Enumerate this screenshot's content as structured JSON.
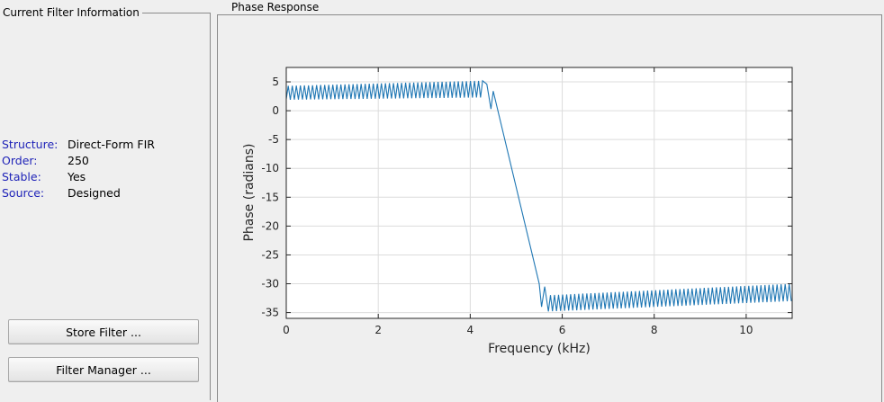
{
  "left_panel": {
    "title": "Current Filter Information",
    "info": [
      {
        "label": "Structure:",
        "value": "Direct-Form FIR"
      },
      {
        "label": "Order:",
        "value": "250"
      },
      {
        "label": "Stable:",
        "value": "Yes"
      },
      {
        "label": "Source:",
        "value": "Designed"
      }
    ],
    "buttons": {
      "store_filter": "Store Filter ...",
      "filter_manager": "Filter Manager ..."
    }
  },
  "right_panel": {
    "title": "Phase Response"
  },
  "colors": {
    "label_blue": "#1f23b8",
    "line": "#1f77b4",
    "grid": "#dcdcdc"
  },
  "chart_data": {
    "type": "line",
    "xlabel": "Frequency (kHz)",
    "ylabel": "Phase (radians)",
    "xlim": [
      0,
      11
    ],
    "ylim": [
      -36,
      7.5
    ],
    "xticks": [
      0,
      2,
      4,
      6,
      8,
      10
    ],
    "yticks": [
      5,
      0,
      -5,
      -10,
      -15,
      -20,
      -25,
      -30,
      -35
    ],
    "grid": true,
    "series": [
      {
        "points": [
          [
            0,
            2.0
          ],
          [
            0.08,
            4.5
          ],
          [
            4.2,
            5.3
          ],
          [
            4.3,
            4.8
          ],
          [
            4.45,
            0.3
          ],
          [
            4.5,
            3.5
          ],
          [
            5.5,
            -30.0
          ],
          [
            5.55,
            -34.0
          ],
          [
            5.6,
            -30.5
          ],
          [
            5.7,
            -34.5
          ],
          [
            11,
            -30.0
          ]
        ],
        "ripple": [
          {
            "x_start": 0.0,
            "x_end": 4.3,
            "period": 0.088,
            "low_start": 1.9,
            "low_end": 2.3,
            "high_start": 4.3,
            "high_end": 5.2
          },
          {
            "x_start": 5.7,
            "x_end": 11.0,
            "period": 0.088,
            "low_start": -34.8,
            "low_end": -33.0,
            "high_start": -32.0,
            "high_end": -30.0
          }
        ]
      }
    ]
  }
}
